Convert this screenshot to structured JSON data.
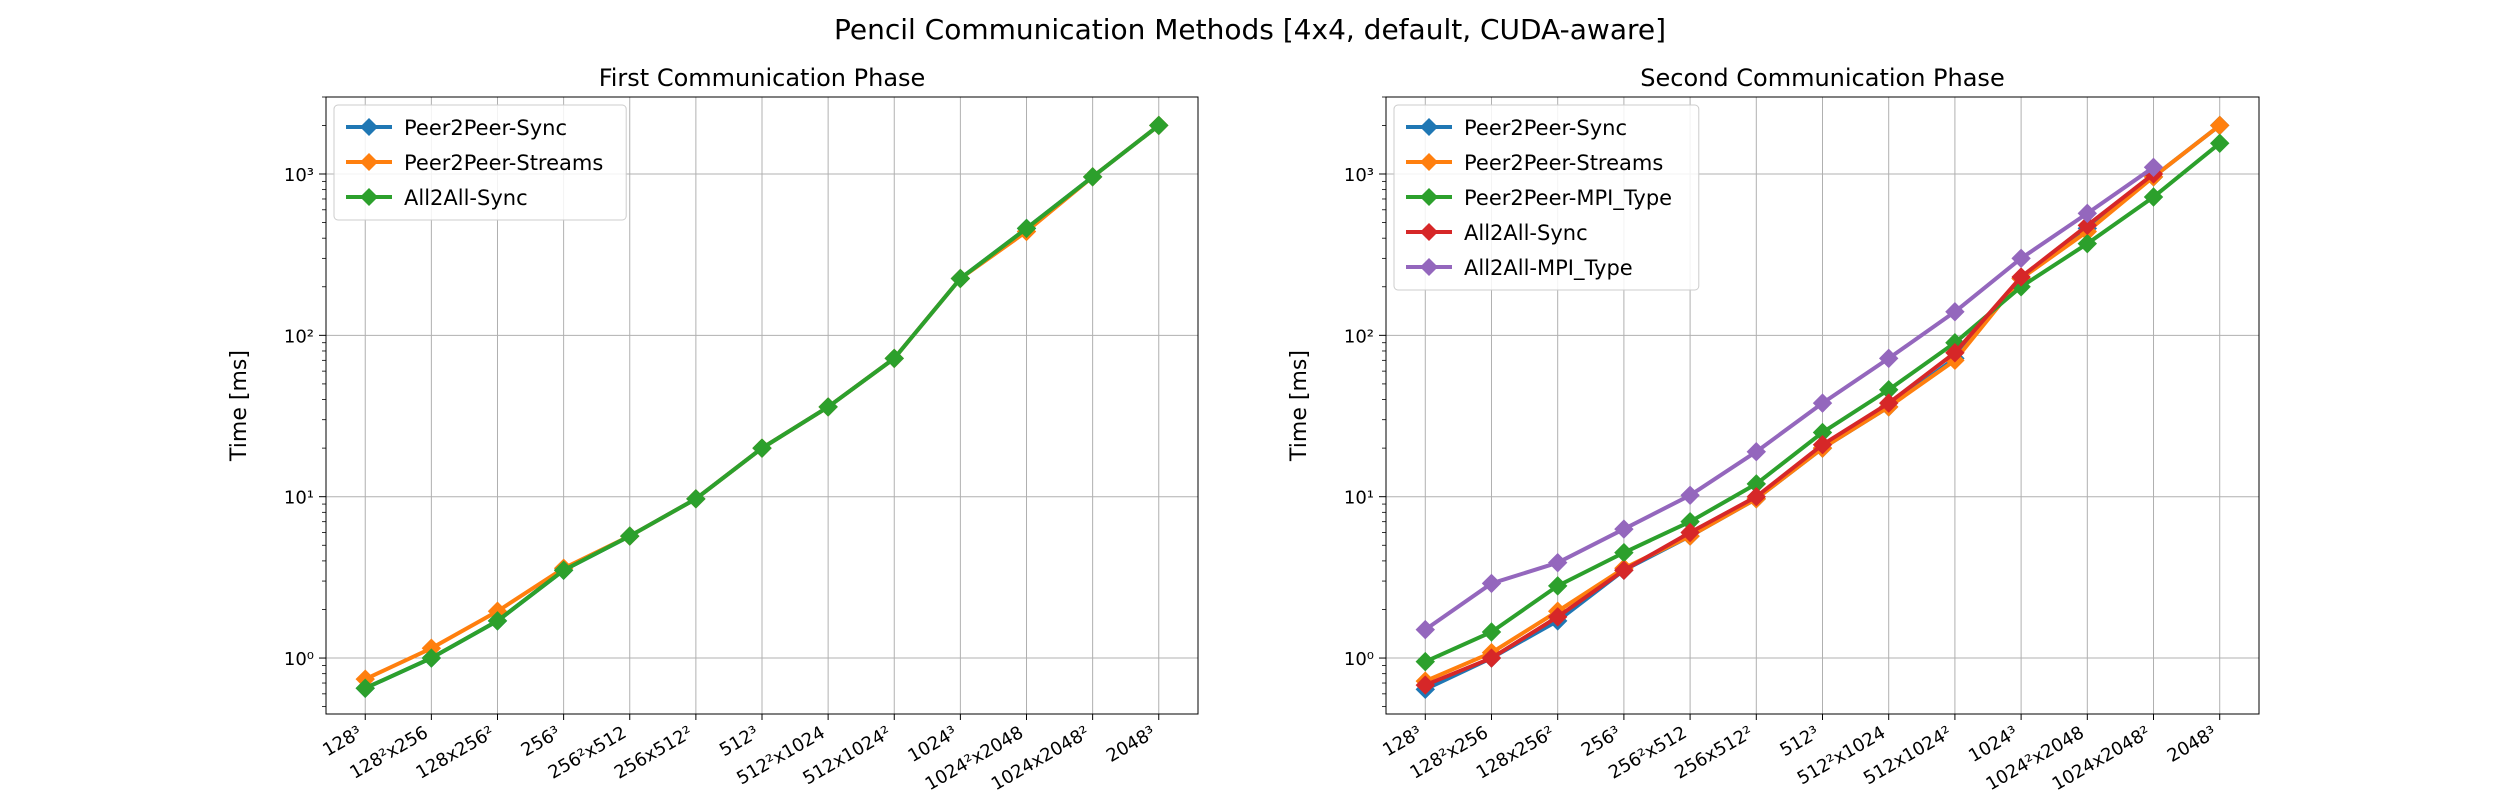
{
  "figure_title": "Pencil Communication Methods [4x4, default, CUDA-aware]",
  "chart_data": [
    {
      "type": "line",
      "title": "First Communication Phase",
      "xlabel": "",
      "ylabel": "Time [ms]",
      "yscale": "log",
      "ylim": [
        0.45,
        3000
      ],
      "grid": true,
      "legend": "top-left",
      "categories": [
        "128³",
        "128²x256",
        "128x256²",
        "256³",
        "256²x512",
        "256x512²",
        "512³",
        "512²x1024",
        "512x1024²",
        "1024³",
        "1024²x2048",
        "1024x2048²",
        "2048³"
      ],
      "yticks": [
        {
          "value": 1,
          "label": "10⁰"
        },
        {
          "value": 10,
          "label": "10¹"
        },
        {
          "value": 100,
          "label": "10²"
        },
        {
          "value": 1000,
          "label": "10³"
        }
      ],
      "series": [
        {
          "name": "Peer2Peer-Sync",
          "color": "#1f77b4",
          "values": [
            0.65,
            1.0,
            1.7,
            3.5,
            5.7,
            9.7,
            20,
            36,
            72,
            225,
            460,
            960,
            2000
          ]
        },
        {
          "name": "Peer2Peer-Streams",
          "color": "#ff7f0e",
          "values": [
            0.74,
            1.15,
            1.95,
            3.6,
            5.7,
            9.7,
            20,
            36,
            72,
            225,
            440,
            960,
            2000
          ]
        },
        {
          "name": "All2All-Sync",
          "color": "#2ca02c",
          "values": [
            0.65,
            1.0,
            1.7,
            3.5,
            5.7,
            9.7,
            20,
            36,
            72,
            225,
            460,
            960,
            2000
          ]
        }
      ]
    },
    {
      "type": "line",
      "title": "Second Communication Phase",
      "xlabel": "",
      "ylabel": "Time [ms]",
      "yscale": "log",
      "ylim": [
        0.45,
        3000
      ],
      "grid": true,
      "legend": "top-left",
      "categories": [
        "128³",
        "128²x256",
        "128x256²",
        "256³",
        "256²x512",
        "256x512²",
        "512³",
        "512²x1024",
        "512x1024²",
        "1024³",
        "1024²x2048",
        "1024x2048²",
        "2048³"
      ],
      "yticks": [
        {
          "value": 1,
          "label": "10⁰"
        },
        {
          "value": 10,
          "label": "10¹"
        },
        {
          "value": 100,
          "label": "10²"
        },
        {
          "value": 1000,
          "label": "10³"
        }
      ],
      "series": [
        {
          "name": "Peer2Peer-Sync",
          "color": "#1f77b4",
          "values": [
            0.64,
            1.0,
            1.7,
            3.5,
            5.7,
            9.7,
            20,
            36,
            72,
            225,
            460,
            960,
            2000
          ]
        },
        {
          "name": "Peer2Peer-Streams",
          "color": "#ff7f0e",
          "values": [
            0.72,
            1.08,
            1.95,
            3.6,
            5.7,
            9.7,
            20,
            36,
            70,
            225,
            440,
            960,
            2000
          ]
        },
        {
          "name": "Peer2Peer-MPI_Type",
          "color": "#2ca02c",
          "values": [
            0.95,
            1.45,
            2.8,
            4.5,
            7.0,
            12,
            25,
            46,
            90,
            200,
            370,
            720,
            1550
          ]
        },
        {
          "name": "All2All-Sync",
          "color": "#d62728",
          "values": [
            0.68,
            1.0,
            1.8,
            3.5,
            6.0,
            10,
            21,
            38,
            78,
            230,
            480,
            1000,
            null
          ]
        },
        {
          "name": "All2All-MPI_Type",
          "color": "#9467bd",
          "values": [
            1.5,
            2.9,
            3.9,
            6.3,
            10.2,
            19,
            38,
            72,
            140,
            300,
            570,
            1100,
            null
          ]
        }
      ]
    }
  ]
}
